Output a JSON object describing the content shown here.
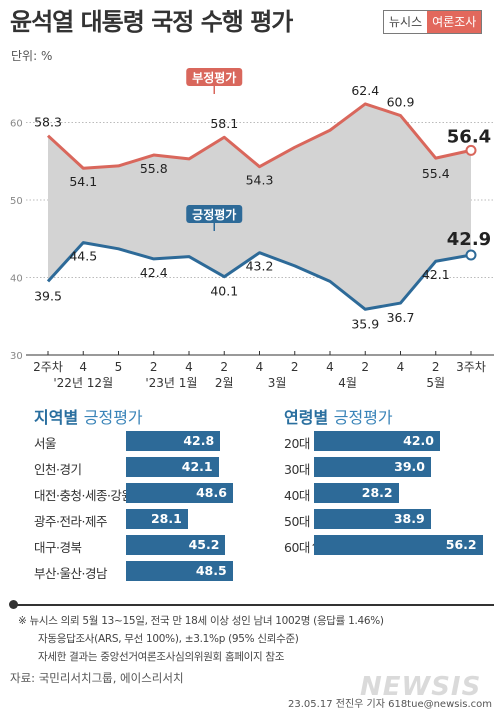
{
  "title": "윤석열 대통령 국정 수행 평가",
  "logo": {
    "left": "뉴시스",
    "right": "여론조사"
  },
  "unit_label": "단위: %",
  "chart_data": [
    {
      "type": "line",
      "ylim": [
        30,
        70
      ],
      "yticks": [
        30,
        40,
        50,
        60
      ],
      "x_tick_labels": [
        "2주차",
        "4",
        "5",
        "2",
        "4",
        "2",
        "4",
        "2",
        "4",
        "2",
        "4",
        "2",
        "3주차"
      ],
      "x_month_labels": [
        {
          "label": "'22년 12월",
          "at": 1
        },
        {
          "label": "'23년 1월",
          "at": 3.5
        },
        {
          "label": "2월",
          "at": 5
        },
        {
          "label": "3월",
          "at": 6.5
        },
        {
          "label": "4월",
          "at": 8.5
        },
        {
          "label": "5월",
          "at": 11
        }
      ],
      "series": [
        {
          "name": "부정평가",
          "color": "#d9675c",
          "values": [
            58.3,
            54.1,
            54.4,
            55.8,
            55.3,
            58.1,
            54.3,
            56.8,
            59.0,
            62.4,
            60.9,
            55.4,
            56.4
          ],
          "data_labels": [
            "58.3",
            "54.1",
            "",
            "55.8",
            "",
            "58.1",
            "54.3",
            "",
            "",
            "62.4",
            "60.9",
            "55.4",
            "56.4"
          ]
        },
        {
          "name": "긍정평가",
          "color": "#2d6a98",
          "values": [
            39.5,
            44.5,
            43.7,
            42.4,
            42.7,
            40.1,
            43.2,
            41.5,
            39.5,
            35.9,
            36.7,
            42.1,
            42.9
          ],
          "data_labels": [
            "39.5",
            "44.5",
            "",
            "42.4",
            "",
            "40.1",
            "43.2",
            "",
            "",
            "35.9",
            "36.7",
            "42.1",
            "42.9"
          ]
        }
      ],
      "colors": {
        "fill": "#d3d3d3",
        "grid": "#bbbbbb"
      }
    },
    {
      "type": "bar",
      "title": "지역별",
      "subtitle": "긍정평가",
      "categories": [
        "서울",
        "인천·경기",
        "대전·충청·세종·강원",
        "광주·전라·제주",
        "대구·경북",
        "부산·울산·경남"
      ],
      "values": [
        42.8,
        42.1,
        48.6,
        28.1,
        45.2,
        48.5
      ],
      "labels": [
        "42.8",
        "42.1",
        "48.6",
        "28.1",
        "45.2",
        "48.5"
      ]
    },
    {
      "type": "bar",
      "title": "연령별",
      "subtitle": "긍정평가",
      "categories": [
        "20대",
        "30대",
        "40대",
        "50대",
        "60대↑"
      ],
      "values": [
        42.0,
        39.0,
        28.2,
        38.9,
        56.2
      ],
      "labels": [
        "42.0",
        "39.0",
        "28.2",
        "38.9",
        "56.2"
      ]
    }
  ],
  "notes": [
    "※ 뉴시스 의뢰 5월 13~15일, 전국 만 18세 이상 성인 남녀 1002명 (응답률 1.46%)",
    "자동응답조사(ARS, 무선 100%), ±3.1%p (95% 신뢰수준)",
    "자세한 결과는 중앙선거여론조사심의위원회 홈페이지 참조"
  ],
  "source": "자료: 국민리서치그룹, 에이스리서치",
  "credit": "23.05.17 전진우 기자 618tue@newsis.com",
  "watermark": "NEWSIS"
}
